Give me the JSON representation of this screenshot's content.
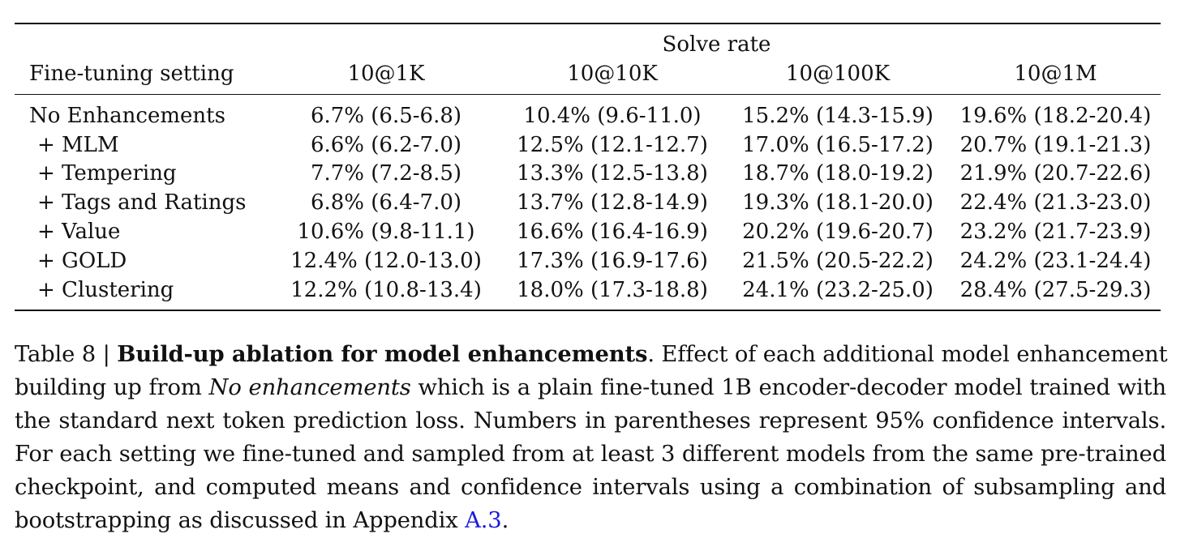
{
  "table": {
    "group_header": "Solve rate",
    "columns": [
      "Fine-tuning setting",
      "10@1K",
      "10@10K",
      "10@100K",
      "10@1M"
    ],
    "rows": [
      {
        "setting": "No Enhancements",
        "indent": false,
        "values": [
          "6.7% (6.5-6.8)",
          "10.4% (9.6-11.0)",
          "15.2% (14.3-15.9)",
          "19.6% (18.2-20.4)"
        ]
      },
      {
        "setting": "+ MLM",
        "indent": true,
        "values": [
          "6.6% (6.2-7.0)",
          "12.5% (12.1-12.7)",
          "17.0% (16.5-17.2)",
          "20.7% (19.1-21.3)"
        ]
      },
      {
        "setting": "+ Tempering",
        "indent": true,
        "values": [
          "7.7% (7.2-8.5)",
          "13.3% (12.5-13.8)",
          "18.7% (18.0-19.2)",
          "21.9% (20.7-22.6)"
        ]
      },
      {
        "setting": "+ Tags and Ratings",
        "indent": true,
        "values": [
          "6.8% (6.4-7.0)",
          "13.7% (12.8-14.9)",
          "19.3% (18.1-20.0)",
          "22.4% (21.3-23.0)"
        ]
      },
      {
        "setting": "+ Value",
        "indent": true,
        "values": [
          "10.6% (9.8-11.1)",
          "16.6% (16.4-16.9)",
          "20.2% (19.6-20.7)",
          "23.2% (21.7-23.9)"
        ]
      },
      {
        "setting": "+ GOLD",
        "indent": true,
        "values": [
          "12.4% (12.0-13.0)",
          "17.3% (16.9-17.6)",
          "21.5% (20.5-22.2)",
          "24.2% (23.1-24.4)"
        ]
      },
      {
        "setting": "+ Clustering",
        "indent": true,
        "values": [
          "12.2% (10.8-13.4)",
          "18.0% (17.3-18.8)",
          "24.1% (23.2-25.0)",
          "28.4% (27.5-29.3)"
        ]
      }
    ]
  },
  "caption": {
    "label": "Table 8 | ",
    "title": "Build-up ablation for model enhancements",
    "after_title": ". Effect of each additional model enhancement",
    "line2_pre": "building up from ",
    "line2_italic": "No enhancements",
    "line2_post": " which is a plain fine-tuned 1B encoder-decoder model trained with",
    "line3": "the standard next token prediction loss. Numbers in parentheses represent 95% confidence intervals.",
    "line4": "For each setting we fine-tuned and sampled from at least 3 different models from the same pre-trained",
    "line5": "checkpoint, and computed means and confidence intervals using a combination of subsampling and",
    "line6_pre": "bootstrapping as discussed in Appendix ",
    "link_text": "A.3",
    "line6_post": "."
  }
}
